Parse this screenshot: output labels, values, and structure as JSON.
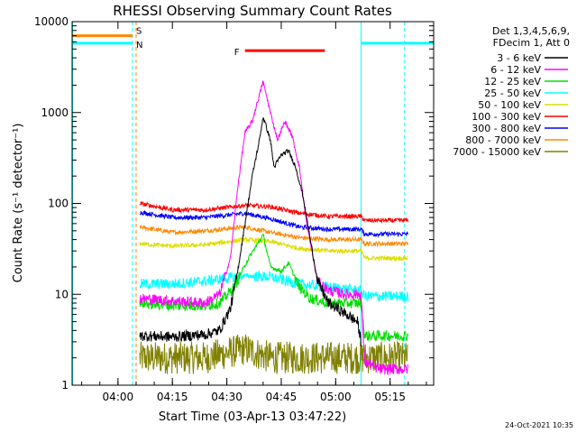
{
  "chart_data": {
    "type": "line",
    "title": "RHESSI Observing Summary Count Rates",
    "xlabel": "Start Time (03-Apr-13 03:47:22)",
    "ylabel": "Count Rate (s⁻¹ detector⁻¹)",
    "x_ticks": [
      "04:00",
      "04:15",
      "04:30",
      "04:45",
      "05:00",
      "05:15"
    ],
    "y_ticks": [
      "1",
      "10",
      "100",
      "1000",
      "10000"
    ],
    "y_scale": "log",
    "xlim": [
      "03:47:22",
      "05:27"
    ],
    "ylim": [
      1,
      10000
    ],
    "grid": false,
    "legend_placement": "right",
    "legend_header": [
      "Det 1,3,4,5,6,9,",
      "FDecim 1, Att 0"
    ],
    "series": [
      {
        "name": "3 - 6 keV",
        "color": "#000000",
        "points": [
          [
            "04:06",
            3.5
          ],
          [
            "04:15",
            3.4
          ],
          [
            "04:24",
            3.6
          ],
          [
            "04:28",
            4
          ],
          [
            "04:31",
            7
          ],
          [
            "04:33",
            18
          ],
          [
            "04:35",
            60
          ],
          [
            "04:37",
            200
          ],
          [
            "04:39",
            500
          ],
          [
            "04:40",
            900
          ],
          [
            "04:42",
            500
          ],
          [
            "04:43",
            250
          ],
          [
            "04:45",
            340
          ],
          [
            "04:47",
            380
          ],
          [
            "04:49",
            250
          ],
          [
            "04:51",
            120
          ],
          [
            "04:53",
            40
          ],
          [
            "04:55",
            14
          ],
          [
            "04:58",
            8
          ],
          [
            "05:03",
            6
          ],
          [
            "05:06",
            5
          ],
          [
            "05:07",
            3
          ]
        ]
      },
      {
        "name": "6 - 12 keV",
        "color": "#ff00ff",
        "points": [
          [
            "04:06",
            9
          ],
          [
            "04:15",
            8.5
          ],
          [
            "04:24",
            8
          ],
          [
            "04:28",
            10
          ],
          [
            "04:31",
            25
          ],
          [
            "04:33",
            150
          ],
          [
            "04:35",
            600
          ],
          [
            "04:37",
            800
          ],
          [
            "04:40",
            2200
          ],
          [
            "04:42",
            1000
          ],
          [
            "04:44",
            500
          ],
          [
            "04:46",
            800
          ],
          [
            "04:48",
            550
          ],
          [
            "04:50",
            250
          ],
          [
            "04:52",
            60
          ],
          [
            "04:55",
            14
          ],
          [
            "04:58",
            11
          ],
          [
            "05:03",
            10
          ],
          [
            "05:07",
            10
          ],
          [
            "05:08",
            1.8
          ],
          [
            "05:12",
            1.5
          ],
          [
            "05:20",
            1.5
          ]
        ]
      },
      {
        "name": "12 - 25 keV",
        "color": "#00dd00",
        "points": [
          [
            "04:06",
            8
          ],
          [
            "04:15",
            7.5
          ],
          [
            "04:24",
            7.5
          ],
          [
            "04:28",
            8
          ],
          [
            "04:32",
            12
          ],
          [
            "04:36",
            25
          ],
          [
            "04:40",
            45
          ],
          [
            "04:42",
            20
          ],
          [
            "04:45",
            18
          ],
          [
            "04:47",
            22
          ],
          [
            "04:50",
            12
          ],
          [
            "04:53",
            9
          ],
          [
            "04:58",
            8
          ],
          [
            "05:03",
            8
          ],
          [
            "05:07",
            8
          ],
          [
            "05:08",
            3.5
          ],
          [
            "05:20",
            3.5
          ]
        ]
      },
      {
        "name": "25 - 50 keV",
        "color": "#00ffff",
        "points": [
          [
            "04:06",
            13
          ],
          [
            "04:15",
            13
          ],
          [
            "04:24",
            14
          ],
          [
            "04:35",
            16
          ],
          [
            "04:42",
            15.5
          ],
          [
            "04:50",
            13
          ],
          [
            "04:58",
            12
          ],
          [
            "05:07",
            11
          ],
          [
            "05:08",
            9.5
          ],
          [
            "05:20",
            9.5
          ]
        ]
      },
      {
        "name": "50 - 100 keV",
        "color": "#dddd00",
        "points": [
          [
            "04:06",
            36
          ],
          [
            "04:15",
            34
          ],
          [
            "04:24",
            35
          ],
          [
            "04:35",
            40
          ],
          [
            "04:42",
            38
          ],
          [
            "04:50",
            32
          ],
          [
            "04:58",
            30
          ],
          [
            "05:07",
            30
          ],
          [
            "05:08",
            25
          ],
          [
            "05:20",
            25
          ]
        ]
      },
      {
        "name": "100 - 300 keV",
        "color": "#ff0000",
        "points": [
          [
            "04:06",
            100
          ],
          [
            "04:15",
            85
          ],
          [
            "04:24",
            85
          ],
          [
            "04:35",
            95
          ],
          [
            "04:42",
            92
          ],
          [
            "04:50",
            78
          ],
          [
            "04:58",
            72
          ],
          [
            "05:07",
            72
          ],
          [
            "05:08",
            65
          ],
          [
            "05:20",
            65
          ]
        ]
      },
      {
        "name": "300 - 800 keV",
        "color": "#0000ff",
        "points": [
          [
            "04:06",
            80
          ],
          [
            "04:15",
            70
          ],
          [
            "04:24",
            70
          ],
          [
            "04:35",
            78
          ],
          [
            "04:42",
            68
          ],
          [
            "04:50",
            55
          ],
          [
            "04:58",
            52
          ],
          [
            "05:07",
            52
          ],
          [
            "05:08",
            46
          ],
          [
            "05:20",
            46
          ]
        ]
      },
      {
        "name": "800 - 7000 keV",
        "color": "#ff8800",
        "points": [
          [
            "04:06",
            55
          ],
          [
            "04:15",
            48
          ],
          [
            "04:24",
            50
          ],
          [
            "04:35",
            55
          ],
          [
            "04:42",
            48
          ],
          [
            "04:50",
            42
          ],
          [
            "04:58",
            40
          ],
          [
            "05:07",
            40
          ],
          [
            "05:08",
            36
          ],
          [
            "05:20",
            36
          ]
        ]
      },
      {
        "name": "7000 - 15000 keV",
        "color": "#808000",
        "points": [
          [
            "04:06",
            2
          ],
          [
            "04:15",
            2
          ],
          [
            "04:24",
            2
          ],
          [
            "04:35",
            2.5
          ],
          [
            "04:42",
            2
          ],
          [
            "04:50",
            2
          ],
          [
            "04:58",
            2
          ],
          [
            "05:07",
            2
          ],
          [
            "05:20",
            2
          ]
        ]
      }
    ],
    "annotations": [
      {
        "label": "S",
        "color": "#ff8800",
        "y": 7000,
        "x_start": "03:47:22",
        "x_end": "04:04"
      },
      {
        "label": "N",
        "color": "#00ffff",
        "y": 5800,
        "x_start": "03:47:22",
        "x_end": "04:04"
      },
      {
        "label": "F",
        "color": "#ff0000",
        "y": 4800,
        "x_start": "04:35",
        "x_end": "04:57"
      }
    ],
    "footer_date": "24-Oct-2021 10:35"
  }
}
